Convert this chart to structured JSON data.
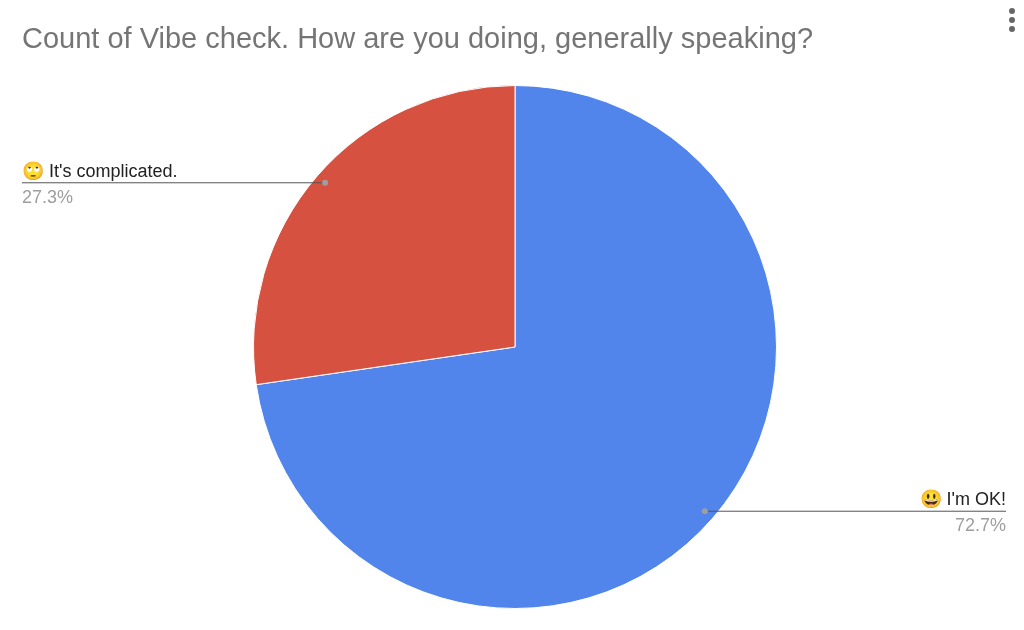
{
  "chart_data": {
    "type": "pie",
    "title": "Count of Vibe check. How are you doing, generally speaking?",
    "categories": [
      "😃 I'm OK!",
      "🙄 It's complicated."
    ],
    "values": [
      72.7,
      27.3
    ],
    "colors": [
      "#5185ec",
      "#d6513f"
    ],
    "value_labels": [
      "72.7%",
      "27.3%"
    ],
    "legend": false
  }
}
